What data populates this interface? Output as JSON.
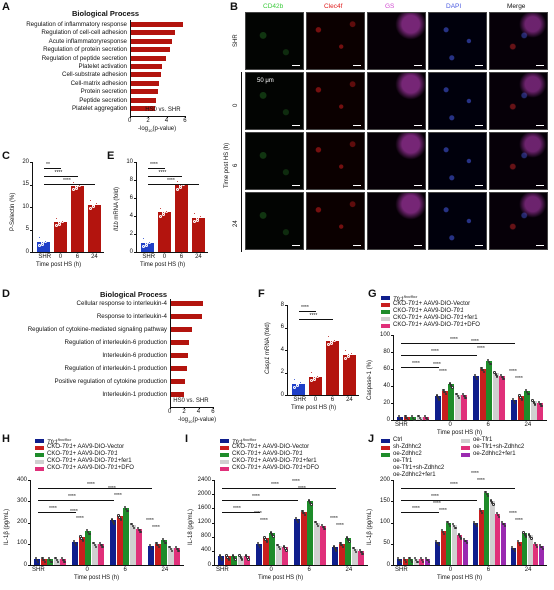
{
  "panel_A": {
    "letter": "A",
    "title": "Biological Process",
    "categories": [
      "Regulation of inflammatory response",
      "Regulation of cell-cell adhesion",
      "Acute inflammatoryresponse",
      "Regulation of protein secretion",
      "Regulation of peptide secretion",
      "Platelet activation",
      "Cell-substrate adhesion",
      "Cell-matrix adhesion",
      "Protein secretion",
      "Peptide secretion",
      "Platelet aggregation"
    ],
    "values": [
      5.8,
      4.9,
      4.6,
      4.3,
      3.9,
      3.5,
      3.4,
      3.2,
      3.0,
      2.8,
      2.7
    ],
    "xticks": [
      "0",
      "2",
      "4",
      "6"
    ],
    "xlabel": "-log",
    "xlabel_sub": "10",
    "xlabel_tail": "(p-value)",
    "annotation": "HS0  vs.  SHR"
  },
  "panel_B": {
    "letter": "B",
    "channels": [
      "CD42b",
      "Clec4f",
      "GS",
      "DAPI",
      "Merge"
    ],
    "channel_colors": [
      "#3ecb3e",
      "#e02020",
      "#d04ad0",
      "#4a5ae0",
      "#111111"
    ],
    "rows": [
      "SHR",
      "0",
      "6",
      "24"
    ],
    "group_label": "Time post HS (h)",
    "scale": "50 μm"
  },
  "panel_C": {
    "letter": "C",
    "ylabel": "P-Selectin (%)",
    "categories": [
      "SHR",
      "0",
      "6",
      "24"
    ],
    "values": [
      2.2,
      6.6,
      14.6,
      10.5
    ],
    "yticks": [
      "0",
      "5",
      "10",
      "15",
      "20"
    ],
    "xlabel": "Time post HS (h)",
    "sig": [
      "**",
      "****",
      "****"
    ]
  },
  "panel_D": {
    "letter": "D",
    "title": "Biological Process",
    "categories": [
      "Cellular response to interleukin-4",
      "Response to interleukin-4",
      "Regulation of cytokine-mediated signaling pathway",
      "Regulation of interleukin-6 production",
      "Interleukin-6 production",
      "Regulation of interleukin-1 production",
      "Positive regulation of cytokine production",
      "Interleukin-1 production"
    ],
    "values": [
      4.6,
      4.5,
      3.0,
      2.6,
      2.5,
      2.3,
      2.1,
      2.0
    ],
    "xticks": [
      "0",
      "2",
      "4",
      "6"
    ],
    "xlabel": "-log",
    "xlabel_sub": "10",
    "xlabel_tail": "(p-value)",
    "annotation": "HS0  vs.  SHR"
  },
  "panel_E": {
    "letter": "E",
    "ylabel_italic": "Il1b",
    "ylabel_tail": "mRNA (fold)",
    "categories": [
      "SHR",
      "0",
      "6",
      "24"
    ],
    "values": [
      1.0,
      4.4,
      7.4,
      3.8
    ],
    "yticks": [
      "0",
      "2",
      "4",
      "6",
      "8",
      "10"
    ],
    "xlabel": "Time post HS (h)",
    "sig": [
      "****",
      "****",
      "****"
    ]
  },
  "panel_F": {
    "letter": "F",
    "ylabel_italic": "Casp1",
    "ylabel_tail": "mRNA (fold)",
    "categories": [
      "SHR",
      "0",
      "6",
      "24"
    ],
    "values": [
      1.0,
      1.6,
      4.8,
      3.6
    ],
    "yticks": [
      "0",
      "2",
      "4",
      "6",
      "8"
    ],
    "xlabel": "Time post HS (h)",
    "sig": [
      "****",
      "****"
    ]
  },
  "legend_GHI": [
    {
      "base": "Tfr1",
      "sup": "flox/flox",
      "rest": ""
    },
    {
      "base": "CKO-",
      "it": "Tfr1",
      "rest": "+ AAV9-DIO-Vector"
    },
    {
      "base": "CKO-",
      "it": "Tfr1",
      "rest": "+ AAV9-DIO-",
      "it2": "Tfr1"
    },
    {
      "base": "CKO-",
      "it": "Tfr1",
      "rest": "+ AAV9-DIO-",
      "it2": "Tfr1",
      "rest2": "+fer1"
    },
    {
      "base": "CKO-",
      "it": "Tfr1",
      "rest": "+ AAV9-DIO-",
      "it2": "Tfr1",
      "rest2": "+DFO"
    }
  ],
  "legend_colors": [
    "#0f1e8c",
    "#c81e1e",
    "#1e8c2a",
    "#d0d0d0",
    "#e0307a"
  ],
  "legend_J": [
    "Ctrl",
    "sh-Zdhhc2",
    "oe-Zdhhc2",
    "oe-Tfr1",
    "oe-Tfr1+sh-Zdhhc2",
    "oe-Zdhhc2+fer1"
  ],
  "legend_J_colors": [
    "#0f1e8c",
    "#c81e1e",
    "#1e8c2a",
    "#d0d0d0",
    "#e0307a",
    "#9a2ab0"
  ],
  "panel_G": {
    "letter": "G",
    "ylabel": "Caspase-1 (%)",
    "yticks": [
      "0",
      "20",
      "40",
      "60",
      "80",
      "100"
    ],
    "groups": [
      "SHR",
      "0",
      "6",
      "24"
    ],
    "series_values": [
      [
        4,
        4,
        4,
        4,
        4
      ],
      [
        28,
        34,
        42,
        30,
        30
      ],
      [
        52,
        60,
        70,
        55,
        52
      ],
      [
        24,
        28,
        34,
        22,
        20
      ]
    ],
    "xlabel": "Time post HS (h)"
  },
  "panel_H": {
    "letter": "H",
    "ylabel": "IL-1β (pg/mL)",
    "yticks": [
      "0",
      "100",
      "200",
      "300",
      "400"
    ],
    "groups": [
      "SHR",
      "0",
      "6",
      "24"
    ],
    "series_values": [
      [
        30,
        30,
        30,
        30,
        30
      ],
      [
        110,
        130,
        160,
        100,
        100
      ],
      [
        210,
        230,
        270,
        190,
        170
      ],
      [
        90,
        100,
        120,
        80,
        80
      ]
    ],
    "xlabel": "Time post HS (h)"
  },
  "panel_I": {
    "letter": "I",
    "ylabel": "IL-18 (pg/mL)",
    "yticks": [
      "0",
      "400",
      "800",
      "1200",
      "1600",
      "2000",
      "2400"
    ],
    "groups": [
      "SHR",
      "0",
      "6",
      "24"
    ],
    "series_values": [
      [
        250,
        250,
        250,
        250,
        250
      ],
      [
        600,
        750,
        900,
        550,
        500
      ],
      [
        1300,
        1500,
        1800,
        1200,
        1100
      ],
      [
        500,
        600,
        750,
        450,
        400
      ]
    ],
    "xlabel": "Time post HS (h)"
  },
  "panel_J": {
    "letter": "J",
    "ylabel": "IL-1β (pg/mL)",
    "yticks": [
      "0",
      "50",
      "100",
      "150",
      "200"
    ],
    "groups": [
      "SHR",
      "0",
      "6",
      "24"
    ],
    "series_values": [
      [
        15,
        15,
        15,
        15,
        15,
        15
      ],
      [
        55,
        80,
        100,
        95,
        70,
        60
      ],
      [
        100,
        130,
        170,
        150,
        120,
        100
      ],
      [
        40,
        55,
        75,
        70,
        50,
        45
      ]
    ],
    "xlabel": "Time post HS (h)"
  },
  "sig_marks": [
    "****",
    "***",
    "**",
    "*"
  ]
}
